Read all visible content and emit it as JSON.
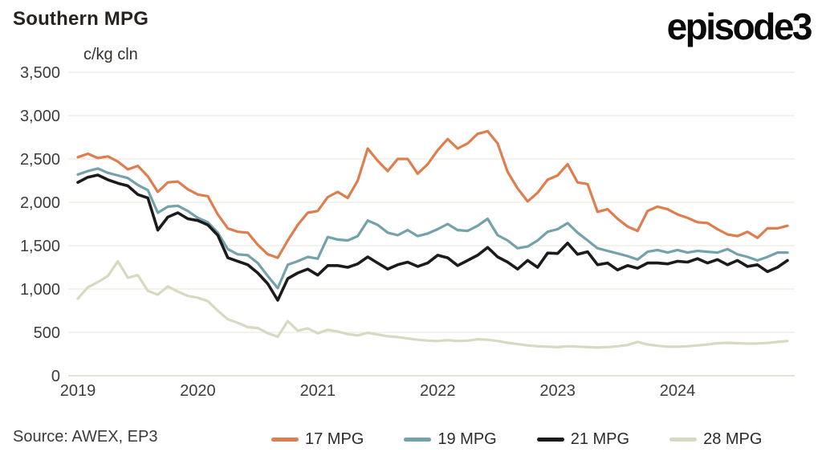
{
  "header": {
    "title": "Southern MPG",
    "unit_label": "c/kg cln",
    "logo_text": "episode3"
  },
  "footer": {
    "source": "Source: AWEX, EP3"
  },
  "colors": {
    "gridline": "#EDECDF",
    "zero_line": "#DBD9C9",
    "tick_text": "#3D3D3D"
  },
  "chart_data": {
    "type": "line",
    "title": "Southern MPG",
    "ylabel": "c/kg cln",
    "xlabel": "",
    "ylim": [
      0,
      3500
    ],
    "y_ticks": [
      0,
      500,
      1000,
      1500,
      2000,
      2500,
      3000,
      3500
    ],
    "x_tick_years": [
      "2019",
      "2020",
      "2021",
      "2022",
      "2023",
      "2024"
    ],
    "x_start_year": 2019,
    "points_per_year": 12,
    "grid": true,
    "legend_position": "bottom",
    "series": [
      {
        "name": "17 MPG",
        "color": "#DE7E4F",
        "width": 3.2,
        "values": [
          2520,
          2560,
          2510,
          2530,
          2470,
          2380,
          2420,
          2300,
          2120,
          2230,
          2240,
          2150,
          2090,
          2070,
          1860,
          1700,
          1660,
          1650,
          1510,
          1400,
          1360,
          1560,
          1740,
          1880,
          1900,
          2060,
          2120,
          2050,
          2250,
          2620,
          2480,
          2360,
          2500,
          2500,
          2330,
          2440,
          2600,
          2730,
          2620,
          2680,
          2790,
          2820,
          2680,
          2350,
          2160,
          2010,
          2110,
          2260,
          2310,
          2440,
          2230,
          2210,
          1890,
          1920,
          1810,
          1720,
          1670,
          1900,
          1950,
          1920,
          1860,
          1820,
          1770,
          1760,
          1690,
          1630,
          1610,
          1660,
          1590,
          1700,
          1700,
          1730
        ]
      },
      {
        "name": "19 MPG",
        "color": "#73A2AB",
        "width": 3.2,
        "values": [
          2320,
          2360,
          2390,
          2340,
          2310,
          2280,
          2200,
          2140,
          1880,
          1950,
          1960,
          1900,
          1820,
          1770,
          1650,
          1460,
          1400,
          1390,
          1300,
          1150,
          1010,
          1280,
          1320,
          1370,
          1350,
          1600,
          1570,
          1560,
          1610,
          1790,
          1740,
          1650,
          1620,
          1680,
          1610,
          1640,
          1690,
          1750,
          1680,
          1670,
          1730,
          1810,
          1620,
          1560,
          1470,
          1490,
          1560,
          1660,
          1690,
          1760,
          1650,
          1560,
          1470,
          1440,
          1410,
          1380,
          1340,
          1430,
          1450,
          1420,
          1450,
          1420,
          1440,
          1430,
          1420,
          1460,
          1400,
          1370,
          1330,
          1370,
          1420,
          1420
        ]
      },
      {
        "name": "21 MPG",
        "color": "#1B1B1B",
        "width": 3.6,
        "values": [
          2230,
          2290,
          2315,
          2260,
          2220,
          2190,
          2090,
          2050,
          1680,
          1830,
          1880,
          1810,
          1790,
          1740,
          1620,
          1360,
          1320,
          1280,
          1185,
          1060,
          870,
          1120,
          1185,
          1230,
          1160,
          1270,
          1270,
          1250,
          1290,
          1370,
          1300,
          1230,
          1280,
          1310,
          1260,
          1300,
          1390,
          1360,
          1270,
          1330,
          1390,
          1480,
          1370,
          1310,
          1230,
          1330,
          1250,
          1415,
          1410,
          1530,
          1400,
          1430,
          1280,
          1300,
          1220,
          1270,
          1240,
          1300,
          1300,
          1290,
          1320,
          1310,
          1350,
          1300,
          1340,
          1280,
          1330,
          1260,
          1280,
          1200,
          1250,
          1330
        ]
      },
      {
        "name": "28 MPG",
        "color": "#D9D8C1",
        "width": 3.2,
        "values": [
          890,
          1020,
          1080,
          1150,
          1320,
          1130,
          1160,
          980,
          935,
          1030,
          970,
          920,
          900,
          860,
          750,
          650,
          610,
          560,
          550,
          490,
          450,
          630,
          520,
          545,
          490,
          530,
          510,
          480,
          465,
          495,
          475,
          455,
          445,
          430,
          415,
          405,
          400,
          410,
          400,
          405,
          420,
          415,
          400,
          380,
          365,
          350,
          340,
          335,
          330,
          340,
          335,
          330,
          325,
          330,
          340,
          355,
          390,
          360,
          345,
          335,
          335,
          340,
          350,
          360,
          375,
          380,
          375,
          370,
          372,
          378,
          390,
          400
        ]
      }
    ]
  }
}
